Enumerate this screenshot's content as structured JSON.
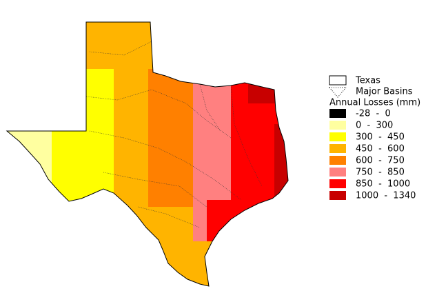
{
  "legend": {
    "outline_label": "Texas",
    "basins_label": "Major Basins",
    "title": "Annual Losses (mm)",
    "classes": [
      {
        "label": "-28  -  0",
        "color": "#000000"
      },
      {
        "label": "0  -  300",
        "color": "#ffffa0"
      },
      {
        "label": "300  -  450",
        "color": "#ffff00"
      },
      {
        "label": "450  -  600",
        "color": "#ffb400"
      },
      {
        "label": "600  -  750",
        "color": "#ff8000"
      },
      {
        "label": "750  -  850",
        "color": "#ff8080"
      },
      {
        "label": "850  -  1000",
        "color": "#ff0000"
      },
      {
        "label": "1000  -  1340",
        "color": "#c80000"
      }
    ]
  }
}
